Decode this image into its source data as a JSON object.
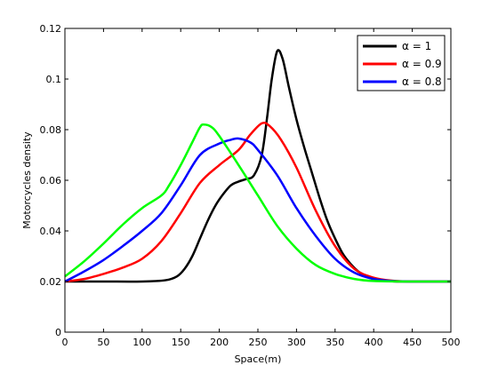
{
  "chart_data": {
    "type": "line",
    "xlabel": "Space(m)",
    "ylabel": "Motorcycles density",
    "xlim": [
      0,
      500
    ],
    "ylim": [
      0,
      0.12
    ],
    "xticks": [
      "0",
      "50",
      "100",
      "150",
      "200",
      "250",
      "300",
      "350",
      "400",
      "450",
      "500"
    ],
    "yticks": [
      "0",
      "0.02",
      "0.04",
      "0.06",
      "0.08",
      "0.1",
      "0.12"
    ],
    "grid": false,
    "legend_position": "top-right",
    "series": [
      {
        "name": "α = 1",
        "color": "#000000",
        "x": [
          0,
          50,
          100,
          130,
          145,
          155,
          165,
          175,
          185,
          195,
          205,
          215,
          225,
          235,
          245,
          255,
          262,
          268,
          275,
          282,
          290,
          300,
          310,
          320,
          330,
          340,
          350,
          360,
          370,
          380,
          390,
          400,
          410,
          420,
          430,
          450,
          500
        ],
        "y": [
          0.02,
          0.02,
          0.02,
          0.0205,
          0.022,
          0.025,
          0.03,
          0.037,
          0.044,
          0.05,
          0.0545,
          0.058,
          0.0595,
          0.0605,
          0.062,
          0.07,
          0.085,
          0.1,
          0.111,
          0.108,
          0.097,
          0.084,
          0.073,
          0.063,
          0.053,
          0.044,
          0.037,
          0.031,
          0.027,
          0.024,
          0.022,
          0.021,
          0.0205,
          0.0202,
          0.02,
          0.02,
          0.02
        ]
      },
      {
        "name": "α = 0.9",
        "color": "#ff0000",
        "x": [
          0,
          25,
          50,
          75,
          100,
          125,
          150,
          175,
          200,
          225,
          240,
          255,
          265,
          280,
          300,
          325,
          350,
          375,
          400,
          425,
          450,
          500
        ],
        "y": [
          0.02,
          0.021,
          0.023,
          0.0255,
          0.029,
          0.036,
          0.047,
          0.059,
          0.066,
          0.072,
          0.078,
          0.0825,
          0.0815,
          0.076,
          0.065,
          0.048,
          0.034,
          0.025,
          0.0215,
          0.0203,
          0.02,
          0.02
        ]
      },
      {
        "name": "α = 0.8",
        "color": "#0000ff",
        "x": [
          0,
          25,
          50,
          75,
          100,
          125,
          150,
          175,
          200,
          215,
          225,
          240,
          250,
          275,
          300,
          325,
          350,
          375,
          400,
          425,
          450,
          500
        ],
        "y": [
          0.02,
          0.024,
          0.0285,
          0.034,
          0.04,
          0.047,
          0.058,
          0.07,
          0.0745,
          0.076,
          0.0765,
          0.075,
          0.072,
          0.062,
          0.049,
          0.038,
          0.029,
          0.0235,
          0.021,
          0.0202,
          0.02,
          0.02
        ]
      },
      {
        "name": "α = 0.8",
        "color": "#00ff00",
        "x": [
          0,
          25,
          50,
          75,
          100,
          125,
          135,
          150,
          165,
          175,
          180,
          190,
          200,
          225,
          250,
          275,
          300,
          325,
          350,
          375,
          400,
          450,
          500
        ],
        "y": [
          0.022,
          0.028,
          0.035,
          0.0425,
          0.049,
          0.054,
          0.058,
          0.066,
          0.075,
          0.081,
          0.082,
          0.081,
          0.0775,
          0.066,
          0.054,
          0.042,
          0.033,
          0.0265,
          0.023,
          0.021,
          0.0202,
          0.02,
          0.02
        ]
      }
    ]
  }
}
